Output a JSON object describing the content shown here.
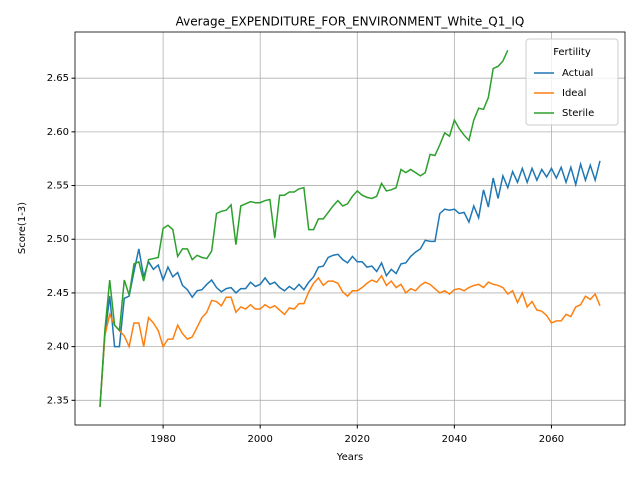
{
  "chart_data": {
    "type": "line",
    "title": "Average_EXPENDITURE_FOR_ENVIRONMENT_White_Q1_IQ",
    "xlabel": "Years",
    "ylabel": "Score(1-3)",
    "legend_title": "Fertility",
    "legend": "upper right",
    "grid": true,
    "xlim": [
      1961.85,
      2075.15
    ],
    "ylim": [
      2.327,
      2.693
    ],
    "xticks": [
      1980,
      2000,
      2020,
      2040,
      2060
    ],
    "yticks": [
      2.35,
      {
        "value": 2.4,
        "label": "2.40"
      },
      2.45,
      {
        "value": 2.5,
        "label": "2.50"
      },
      2.55,
      {
        "value": 2.6,
        "label": "2.60"
      },
      2.65
    ],
    "x": [
      1967,
      1968,
      1969,
      1970,
      1971,
      1972,
      1973,
      1974,
      1975,
      1976,
      1977,
      1978,
      1979,
      1980,
      1981,
      1982,
      1983,
      1984,
      1985,
      1986,
      1987,
      1988,
      1989,
      1990,
      1991,
      1992,
      1993,
      1994,
      1995,
      1996,
      1997,
      1998,
      1999,
      2000,
      2001,
      2002,
      2003,
      2004,
      2005,
      2006,
      2007,
      2008,
      2009,
      2010,
      2011,
      2012,
      2013,
      2014,
      2015,
      2016,
      2017,
      2018,
      2019,
      2020,
      2021,
      2022,
      2023,
      2024,
      2025,
      2026,
      2027,
      2028,
      2029,
      2030,
      2031,
      2032,
      2033,
      2034,
      2035,
      2036,
      2037,
      2038,
      2039,
      2040,
      2041,
      2042,
      2043,
      2044,
      2045,
      2046,
      2047,
      2048,
      2049,
      2050,
      2051,
      2052,
      2053,
      2054,
      2055,
      2056,
      2057,
      2058,
      2059,
      2060,
      2061,
      2062,
      2063,
      2064,
      2065,
      2066,
      2067,
      2068,
      2069,
      2070
    ],
    "series": [
      {
        "name": "Actual",
        "color": "#1f77b4",
        "values": [
          2.344,
          2.41,
          2.447,
          2.4,
          2.4,
          2.445,
          2.447,
          2.47,
          2.491,
          2.465,
          2.479,
          2.472,
          2.476,
          2.462,
          2.474,
          2.465,
          2.469,
          2.457,
          2.453,
          2.446,
          2.452,
          2.453,
          2.458,
          2.462,
          2.455,
          2.451,
          2.454,
          2.455,
          2.45,
          2.454,
          2.454,
          2.46,
          2.456,
          2.458,
          2.464,
          2.458,
          2.46,
          2.455,
          2.452,
          2.456,
          2.453,
          2.458,
          2.453,
          2.46,
          2.465,
          2.474,
          2.475,
          2.483,
          2.485,
          2.486,
          2.481,
          2.478,
          2.484,
          2.479,
          2.479,
          2.474,
          2.475,
          2.47,
          2.478,
          2.466,
          2.472,
          2.468,
          2.477,
          2.478,
          2.484,
          2.488,
          2.491,
          2.499,
          2.498,
          2.498,
          2.524,
          2.528,
          2.527,
          2.528,
          2.524,
          2.525,
          2.516,
          2.531,
          2.52,
          2.546,
          2.53,
          2.557,
          2.538,
          2.559,
          2.548,
          2.563,
          2.553,
          2.566,
          2.553,
          2.566,
          2.555,
          2.565,
          2.558,
          2.566,
          2.557,
          2.567,
          2.553,
          2.567,
          2.551,
          2.57,
          2.555,
          2.569,
          2.555,
          2.573
        ]
      },
      {
        "name": "Ideal",
        "color": "#ff7f0e",
        "values": [
          2.344,
          2.41,
          2.43,
          2.42,
          2.415,
          2.41,
          2.4,
          2.422,
          2.422,
          2.4,
          2.427,
          2.422,
          2.415,
          2.4,
          2.407,
          2.407,
          2.42,
          2.412,
          2.407,
          2.409,
          2.418,
          2.427,
          2.432,
          2.443,
          2.442,
          2.438,
          2.446,
          2.446,
          2.432,
          2.437,
          2.435,
          2.439,
          2.435,
          2.435,
          2.439,
          2.436,
          2.438,
          2.434,
          2.43,
          2.436,
          2.435,
          2.44,
          2.44,
          2.451,
          2.459,
          2.464,
          2.457,
          2.461,
          2.461,
          2.459,
          2.451,
          2.447,
          2.452,
          2.452,
          2.455,
          2.459,
          2.462,
          2.46,
          2.466,
          2.457,
          2.461,
          2.455,
          2.458,
          2.45,
          2.454,
          2.452,
          2.457,
          2.46,
          2.458,
          2.454,
          2.45,
          2.452,
          2.449,
          2.453,
          2.454,
          2.452,
          2.455,
          2.457,
          2.458,
          2.455,
          2.46,
          2.458,
          2.457,
          2.455,
          2.449,
          2.452,
          2.441,
          2.45,
          2.437,
          2.442,
          2.434,
          2.433,
          2.429,
          2.422,
          2.424,
          2.424,
          2.43,
          2.428,
          2.437,
          2.439,
          2.447,
          2.444,
          2.449,
          2.438
        ]
      },
      {
        "name": "Sterile",
        "color": "#2ca02c",
        "values": [
          2.344,
          2.415,
          2.462,
          2.42,
          2.415,
          2.462,
          2.448,
          2.477,
          2.479,
          2.461,
          2.481,
          2.482,
          2.483,
          2.51,
          2.513,
          2.509,
          2.484,
          2.491,
          2.491,
          2.481,
          2.485,
          2.483,
          2.482,
          2.489,
          2.524,
          2.526,
          2.527,
          2.532,
          2.495,
          2.531,
          2.533,
          2.535,
          2.534,
          2.534,
          2.536,
          2.537,
          2.501,
          2.541,
          2.541,
          2.544,
          2.544,
          2.547,
          2.548,
          2.509,
          2.509,
          2.519,
          2.519,
          2.525,
          2.531,
          2.536,
          2.531,
          2.533,
          2.54,
          2.545,
          2.541,
          2.539,
          2.538,
          2.54,
          2.552,
          2.545,
          2.546,
          2.548,
          2.565,
          2.562,
          2.565,
          2.562,
          2.559,
          2.562,
          2.579,
          2.578,
          2.588,
          2.599,
          2.596,
          2.611,
          2.603,
          2.597,
          2.592,
          2.611,
          2.622,
          2.621,
          2.632,
          2.659,
          2.661,
          2.666,
          2.676,
          null,
          null,
          null,
          null,
          null,
          null,
          null,
          null,
          null,
          null,
          null,
          null,
          null,
          null,
          null,
          null,
          null,
          null,
          null
        ]
      }
    ]
  }
}
